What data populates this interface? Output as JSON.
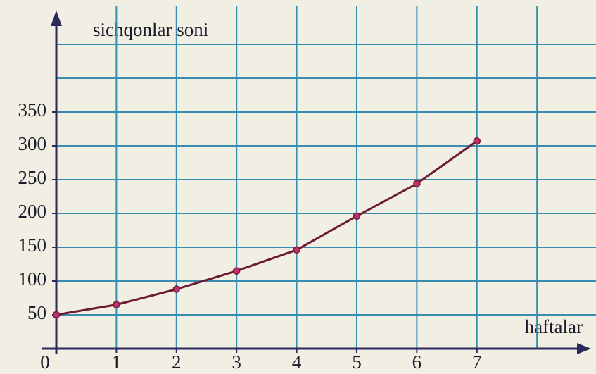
{
  "chart_data": {
    "type": "line",
    "y_label": "sichqonlar soni",
    "x_label": "haftalar",
    "x": [
      0,
      1,
      2,
      3,
      4,
      5,
      6,
      7
    ],
    "series": [
      {
        "color": "#6e1a35",
        "marker_color": "#c0306a",
        "values": [
          50,
          65,
          88,
          115,
          146,
          196,
          244,
          307
        ]
      }
    ],
    "xlim": [
      0,
      8.9
    ],
    "ylim": [
      0,
      500
    ],
    "xticks": [
      0,
      1,
      2,
      3,
      4,
      5,
      6,
      7
    ],
    "yticks": [
      50,
      100,
      150,
      200,
      250,
      300,
      350
    ],
    "xgrid": [
      1,
      2,
      3,
      4,
      5,
      6,
      7,
      8
    ],
    "ygrid": [
      50,
      100,
      150,
      200,
      250,
      300,
      350,
      400,
      450
    ],
    "grid": true,
    "grid_color": "#3a8db0",
    "axis_color": "#2b2a5c"
  }
}
